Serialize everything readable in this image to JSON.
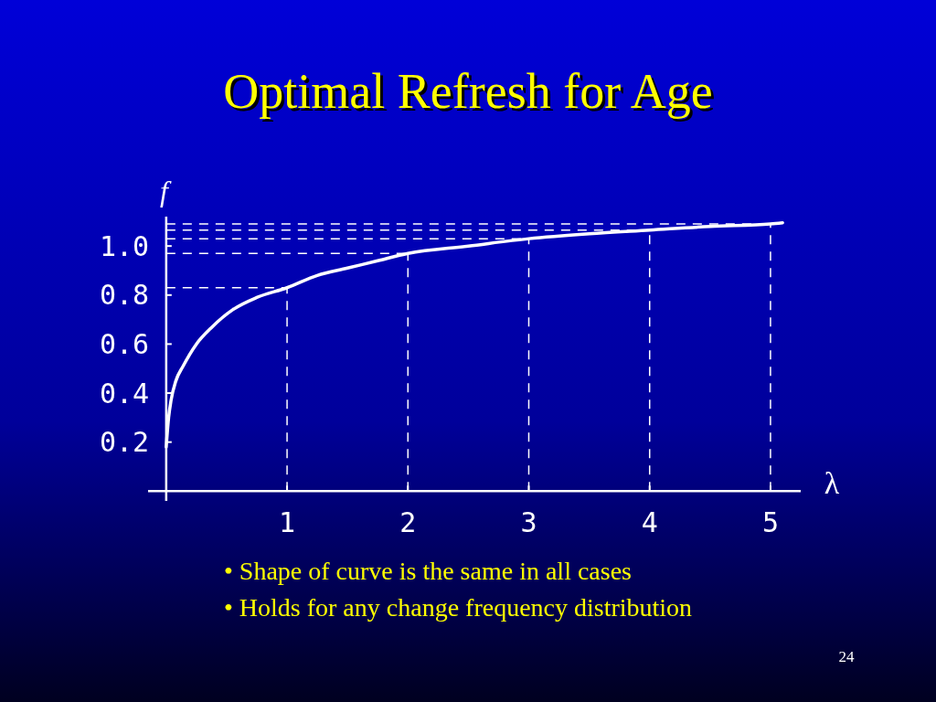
{
  "chart_data": {
    "type": "line",
    "title": "Optimal Refresh for Age",
    "xlabel": "λ",
    "ylabel": "f",
    "x": [
      0,
      0.02,
      0.04,
      0.08,
      0.14,
      0.25,
      0.38,
      0.55,
      0.75,
      1,
      1.25,
      1.5,
      1.75,
      2,
      2.5,
      3,
      3.5,
      4,
      4.5,
      5,
      5.1
    ],
    "series": [
      {
        "color": "#ffffff",
        "values": [
          0.18,
          0.3,
          0.37,
          0.45,
          0.51,
          0.6,
          0.67,
          0.74,
          0.79,
          0.83,
          0.88,
          0.91,
          0.94,
          0.97,
          1.0,
          1.03,
          1.05,
          1.065,
          1.08,
          1.09,
          1.095
        ]
      }
    ],
    "xlim": [
      -0.15,
      5.25
    ],
    "ylim": [
      -0.04,
      1.12
    ],
    "xticks": [
      1,
      2,
      3,
      4,
      5
    ],
    "yticks": [
      0.2,
      0.4,
      0.6,
      {
        "value": 0.8,
        "label": "0.8"
      },
      {
        "value": 1.0,
        "label": "1.0"
      }
    ],
    "ref_lines": [
      {
        "axis": "x",
        "value": 1,
        "line_style": "dashed",
        "color": "#ffffff"
      },
      {
        "axis": "x",
        "value": 2,
        "line_style": "dashed",
        "color": "#ffffff"
      },
      {
        "axis": "x",
        "value": 3,
        "line_style": "dashed",
        "color": "#ffffff"
      },
      {
        "axis": "x",
        "value": 4,
        "line_style": "dashed",
        "color": "#ffffff"
      },
      {
        "axis": "x",
        "value": 5,
        "line_style": "dashed",
        "color": "#ffffff"
      },
      {
        "axis": "y",
        "value": 0.83,
        "line_style": "dashed",
        "color": "#ffffff"
      },
      {
        "axis": "y",
        "value": 0.97,
        "line_style": "dashed",
        "color": "#ffffff"
      },
      {
        "axis": "y",
        "value": 1.03,
        "line_style": "dashed",
        "color": "#ffffff"
      },
      {
        "axis": "y",
        "value": 1.065,
        "line_style": "dashed",
        "color": "#ffffff"
      },
      {
        "axis": "y",
        "value": 1.09,
        "line_style": "dashed",
        "color": "#ffffff"
      }
    ],
    "annotations": [
      "• Shape of curve is the same in all cases",
      "• Holds for any change frequency distribution",
      "24"
    ],
    "grid": false,
    "marker": "none",
    "line_style": "solid"
  }
}
